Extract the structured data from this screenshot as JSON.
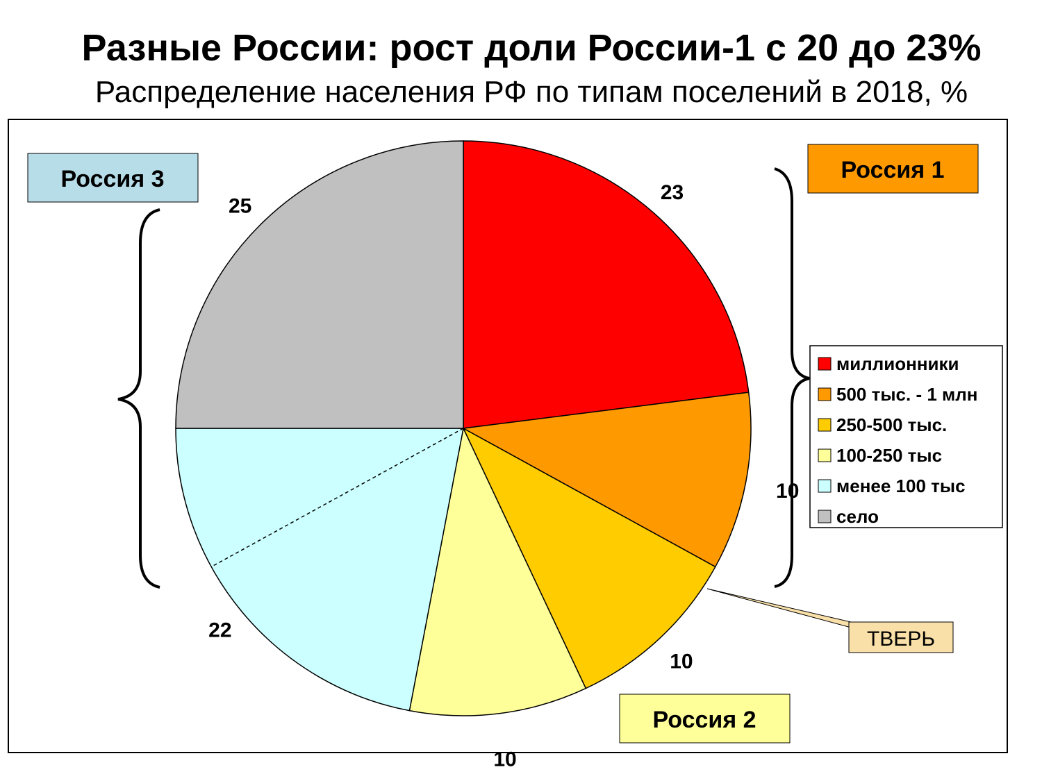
{
  "title": "Разные России: рост доли России-1 с 20 до 23%",
  "subtitle": "Распределение населения РФ по типам поселений в 2018, %",
  "chart_data": {
    "type": "pie",
    "categories": [
      "миллионники",
      "500 тыс. - 1 млн",
      "250-500 тыс.",
      "100-250 тыс",
      "менее 100 тыс",
      "село"
    ],
    "values": [
      23,
      10,
      10,
      10,
      22,
      25
    ],
    "value_labels": [
      "23",
      "10",
      "10",
      "10",
      "22",
      "25"
    ],
    "colors": [
      "#ff0000",
      "#ff9900",
      "#ffcc00",
      "#ffff99",
      "#ccffff",
      "#c0c0c0"
    ],
    "legend_placement": "right",
    "groups": [
      {
        "label": "Россия 1",
        "color": "#ff9900"
      },
      {
        "label": "Россия 2",
        "color": "#ffff99"
      },
      {
        "label": "Россия 3",
        "color": "#b7dde8"
      }
    ],
    "annotation": {
      "label": "ТВЕРЬ",
      "color": "#f9e0a8"
    }
  }
}
